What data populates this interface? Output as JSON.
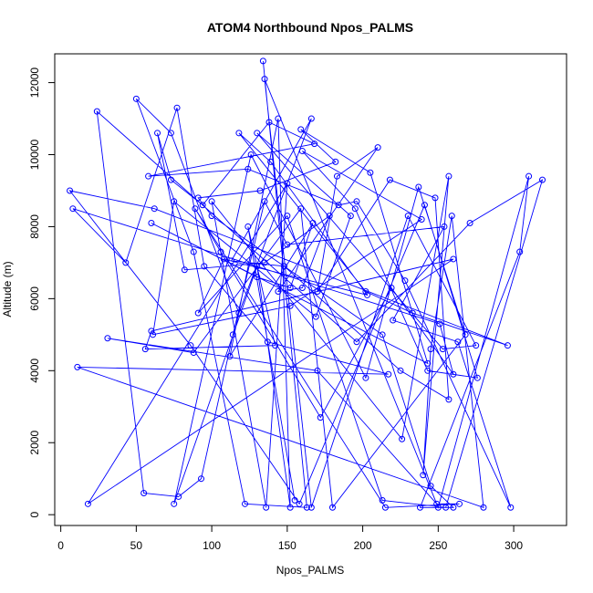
{
  "chart_data": {
    "type": "line",
    "title": "ATOM4 Northbound Npos_PALMS",
    "xlabel": "Npos_PALMS",
    "ylabel": "Altitude (m)",
    "xlim": [
      -4,
      335
    ],
    "ylim": [
      -300,
      12800
    ],
    "x_ticks": [
      0,
      50,
      100,
      150,
      200,
      250,
      300
    ],
    "y_ticks": [
      0,
      2000,
      4000,
      6000,
      8000,
      10000,
      12000
    ],
    "grid": false,
    "line_color": "#0000ff",
    "marker": "open-circle",
    "series": [
      {
        "x": [
          134,
          163,
          122,
          88,
          50,
          73,
          118,
          166,
          113,
          148,
          225,
          257,
          248,
          218,
          170,
          183,
          210,
          144,
          160,
          178,
          135,
          82,
          64,
          73,
          94,
          138,
          168,
          58,
          124,
          184,
          196,
          228,
          298,
          263,
          220,
          254,
          150,
          135,
          114,
          93,
          78,
          55,
          24,
          196,
          271,
          319,
          255,
          213,
          150,
          91,
          108,
          203,
          139,
          118,
          202,
          233,
          296,
          62,
          6,
          86,
          158,
          241,
          276,
          243,
          195,
          160,
          239,
          152,
          61,
          75,
          169,
          192,
          130,
          253,
          275,
          230,
          166,
          135,
          250,
          310,
          304,
          238,
          260,
          245,
          213,
          100,
          91,
          132,
          182,
          159,
          205,
          243,
          60,
          130,
          152,
          167,
          112,
          144,
          152,
          130,
          75,
          126,
          202,
          237,
          268,
          180,
          159,
          88,
          31,
          170,
          249,
          264,
          215,
          89,
          106,
          172,
          219,
          260,
          251,
          8,
          43,
          77,
          95,
          137,
          217,
          11,
          280,
          259,
          245,
          240,
          257,
          226,
          100,
          136,
          150,
          18,
          260,
          60,
          56,
          142,
          124,
          155
        ],
        "y": [
          12600,
          200,
          300,
          7300,
          11550,
          10600,
          5600,
          11000,
          7050,
          6900,
          4000,
          3200,
          8800,
          9300,
          6200,
          9400,
          10200,
          6200,
          6300,
          8300,
          7000,
          6800,
          10600,
          9300,
          8600,
          10900,
          10300,
          9400,
          9600,
          8600,
          8700,
          6500,
          200,
          4800,
          5400,
          8000,
          7500,
          8700,
          5000,
          1000,
          500,
          600,
          11200,
          4800,
          8100,
          9300,
          200,
          400,
          8300,
          5600,
          7100,
          6100,
          9800,
          10600,
          6200,
          5600,
          4700,
          8500,
          9000,
          4700,
          300,
          8600,
          3800,
          4000,
          8500,
          10100,
          8200,
          5800,
          5000,
          8700,
          5500,
          8300,
          10600,
          4600,
          4700,
          8300,
          200,
          12100,
          200,
          9400,
          7300,
          200,
          200,
          800,
          5000,
          8300,
          8800,
          9000,
          9800,
          10700,
          9500,
          4200,
          8100,
          6600,
          6300,
          8100,
          4400,
          11000,
          200,
          6900,
          300,
          10000,
          3800,
          9100,
          5000,
          200,
          8500,
          4500,
          4900,
          4000,
          300,
          300,
          200,
          8500,
          7300,
          2700,
          6300,
          3900,
          5300,
          8500,
          7000,
          11300,
          6900,
          4800,
          3900,
          4100,
          200,
          8300,
          4600,
          1100,
          9400,
          2100,
          8700,
          200,
          9200,
          300,
          7100,
          5100,
          4600,
          4700,
          8000,
          400
        ]
      }
    ]
  }
}
